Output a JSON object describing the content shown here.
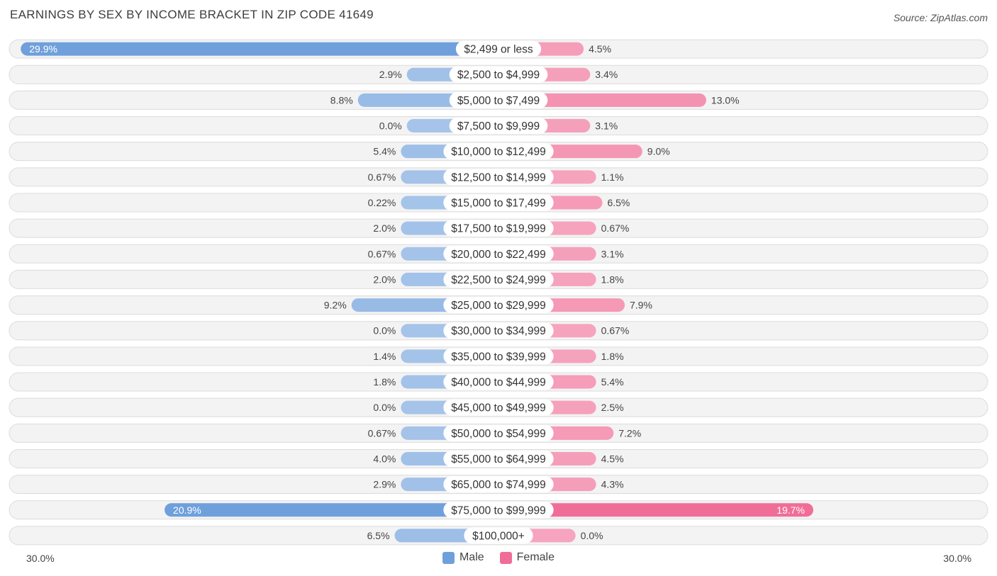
{
  "chart_data": {
    "type": "bar",
    "orientation": "horizontal-diverging",
    "title": "EARNINGS BY SEX BY INCOME BRACKET IN ZIP CODE 41649",
    "source": "Source: ZipAtlas.com",
    "categories": [
      "$2,499 or less",
      "$2,500 to $4,999",
      "$5,000 to $7,499",
      "$7,500 to $9,999",
      "$10,000 to $12,499",
      "$12,500 to $14,999",
      "$15,000 to $17,499",
      "$17,500 to $19,999",
      "$20,000 to $22,499",
      "$22,500 to $24,999",
      "$25,000 to $29,999",
      "$30,000 to $34,999",
      "$35,000 to $39,999",
      "$40,000 to $44,999",
      "$45,000 to $49,999",
      "$50,000 to $54,999",
      "$55,000 to $64,999",
      "$65,000 to $74,999",
      "$75,000 to $99,999",
      "$100,000+"
    ],
    "series": [
      {
        "name": "Male",
        "color": "#6fa0dc",
        "values": [
          29.9,
          2.9,
          8.8,
          0.0,
          5.4,
          0.67,
          0.22,
          2.0,
          0.67,
          2.0,
          9.2,
          0.0,
          1.4,
          1.8,
          0.0,
          0.67,
          4.0,
          2.9,
          20.9,
          6.5
        ],
        "labels": [
          "29.9%",
          "2.9%",
          "8.8%",
          "0.0%",
          "5.4%",
          "0.67%",
          "0.22%",
          "2.0%",
          "0.67%",
          "2.0%",
          "9.2%",
          "0.0%",
          "1.4%",
          "1.8%",
          "0.0%",
          "0.67%",
          "4.0%",
          "2.9%",
          "20.9%",
          "6.5%"
        ]
      },
      {
        "name": "Female",
        "color": "#f06d97",
        "values": [
          4.5,
          3.4,
          13.0,
          3.1,
          9.0,
          1.1,
          6.5,
          0.67,
          3.1,
          1.8,
          7.9,
          0.67,
          1.8,
          5.4,
          2.5,
          7.2,
          4.5,
          4.3,
          19.7,
          0.0
        ],
        "labels": [
          "4.5%",
          "3.4%",
          "13.0%",
          "3.1%",
          "9.0%",
          "1.1%",
          "6.5%",
          "0.67%",
          "3.1%",
          "1.8%",
          "7.9%",
          "0.67%",
          "1.8%",
          "5.4%",
          "2.5%",
          "7.2%",
          "4.5%",
          "4.3%",
          "19.7%",
          "0.0%"
        ]
      }
    ],
    "xlim": [
      -30.0,
      30.0
    ],
    "axis_min_label": "30.0%",
    "axis_max_label": "30.0%",
    "legend": [
      "Male",
      "Female"
    ],
    "legend_position": "bottom-center"
  }
}
